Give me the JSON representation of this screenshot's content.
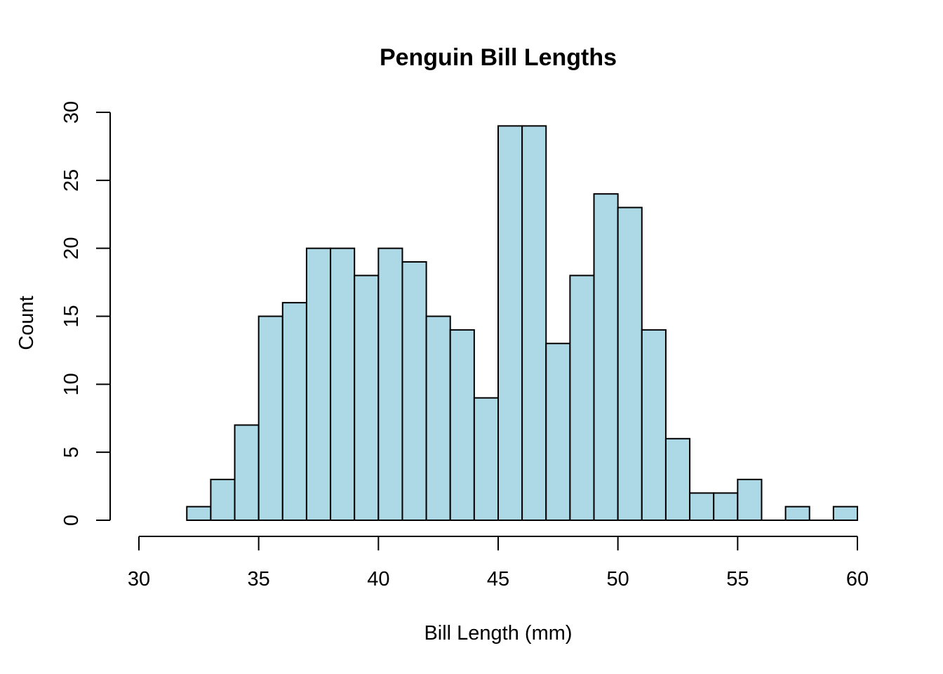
{
  "chart_data": {
    "type": "bar",
    "title": "Penguin Bill Lengths",
    "xlabel": "Bill Length (mm)",
    "ylabel": "Count",
    "bin_width": 1,
    "bins": [
      {
        "start": 32,
        "end": 33,
        "count": 1
      },
      {
        "start": 33,
        "end": 34,
        "count": 3
      },
      {
        "start": 34,
        "end": 35,
        "count": 7
      },
      {
        "start": 35,
        "end": 36,
        "count": 15
      },
      {
        "start": 36,
        "end": 37,
        "count": 16
      },
      {
        "start": 37,
        "end": 38,
        "count": 20
      },
      {
        "start": 38,
        "end": 39,
        "count": 20
      },
      {
        "start": 39,
        "end": 40,
        "count": 18
      },
      {
        "start": 40,
        "end": 41,
        "count": 20
      },
      {
        "start": 41,
        "end": 42,
        "count": 19
      },
      {
        "start": 42,
        "end": 43,
        "count": 15
      },
      {
        "start": 43,
        "end": 44,
        "count": 14
      },
      {
        "start": 44,
        "end": 45,
        "count": 9
      },
      {
        "start": 45,
        "end": 46,
        "count": 29
      },
      {
        "start": 46,
        "end": 47,
        "count": 29
      },
      {
        "start": 47,
        "end": 48,
        "count": 13
      },
      {
        "start": 48,
        "end": 49,
        "count": 18
      },
      {
        "start": 49,
        "end": 50,
        "count": 24
      },
      {
        "start": 50,
        "end": 51,
        "count": 23
      },
      {
        "start": 51,
        "end": 52,
        "count": 14
      },
      {
        "start": 52,
        "end": 53,
        "count": 6
      },
      {
        "start": 53,
        "end": 54,
        "count": 2
      },
      {
        "start": 54,
        "end": 55,
        "count": 2
      },
      {
        "start": 55,
        "end": 56,
        "count": 3
      },
      {
        "start": 56,
        "end": 57,
        "count": 0
      },
      {
        "start": 57,
        "end": 58,
        "count": 1
      },
      {
        "start": 58,
        "end": 59,
        "count": 0
      },
      {
        "start": 59,
        "end": 60,
        "count": 1
      }
    ],
    "xlim": [
      30,
      60
    ],
    "ylim": [
      0,
      30
    ],
    "x_ticks": [
      30,
      35,
      40,
      45,
      50,
      55,
      60
    ],
    "y_ticks": [
      0,
      5,
      10,
      15,
      20,
      25,
      30
    ],
    "bar_fill": "#add8e6",
    "bar_stroke": "#000000",
    "grid": false,
    "legend": "none"
  }
}
